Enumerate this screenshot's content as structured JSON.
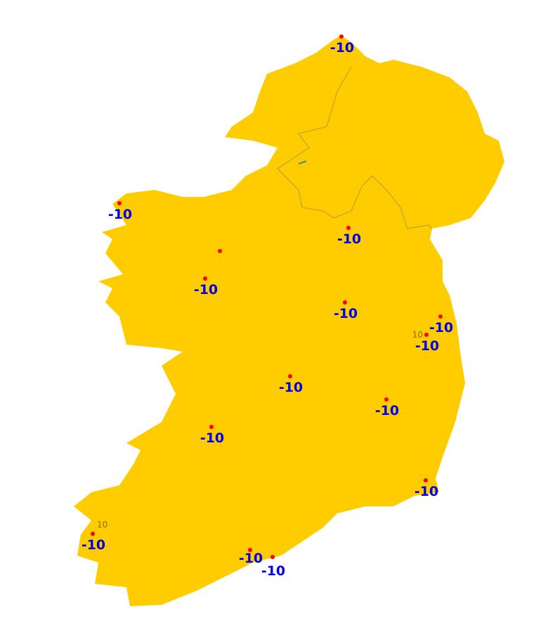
{
  "map": {
    "land_color": "#ffcc00",
    "border_color": "#b39a3a",
    "marker_color": "#ff0000",
    "label_color": "#0000ee",
    "stations": [
      {
        "label": "-10"
      },
      {
        "label": "-10"
      },
      {
        "label": "-10"
      },
      {
        "label": ""
      },
      {
        "label": "-10"
      },
      {
        "label": "-10"
      },
      {
        "label": "-10"
      },
      {
        "label": "-10",
        "sub_label": "10"
      },
      {
        "label": "-10"
      },
      {
        "label": "-10"
      },
      {
        "label": "-10"
      },
      {
        "label": "-10"
      },
      {
        "label": "-10",
        "sub_label": "10"
      },
      {
        "label": "-10"
      },
      {
        "label": "-10"
      }
    ]
  }
}
